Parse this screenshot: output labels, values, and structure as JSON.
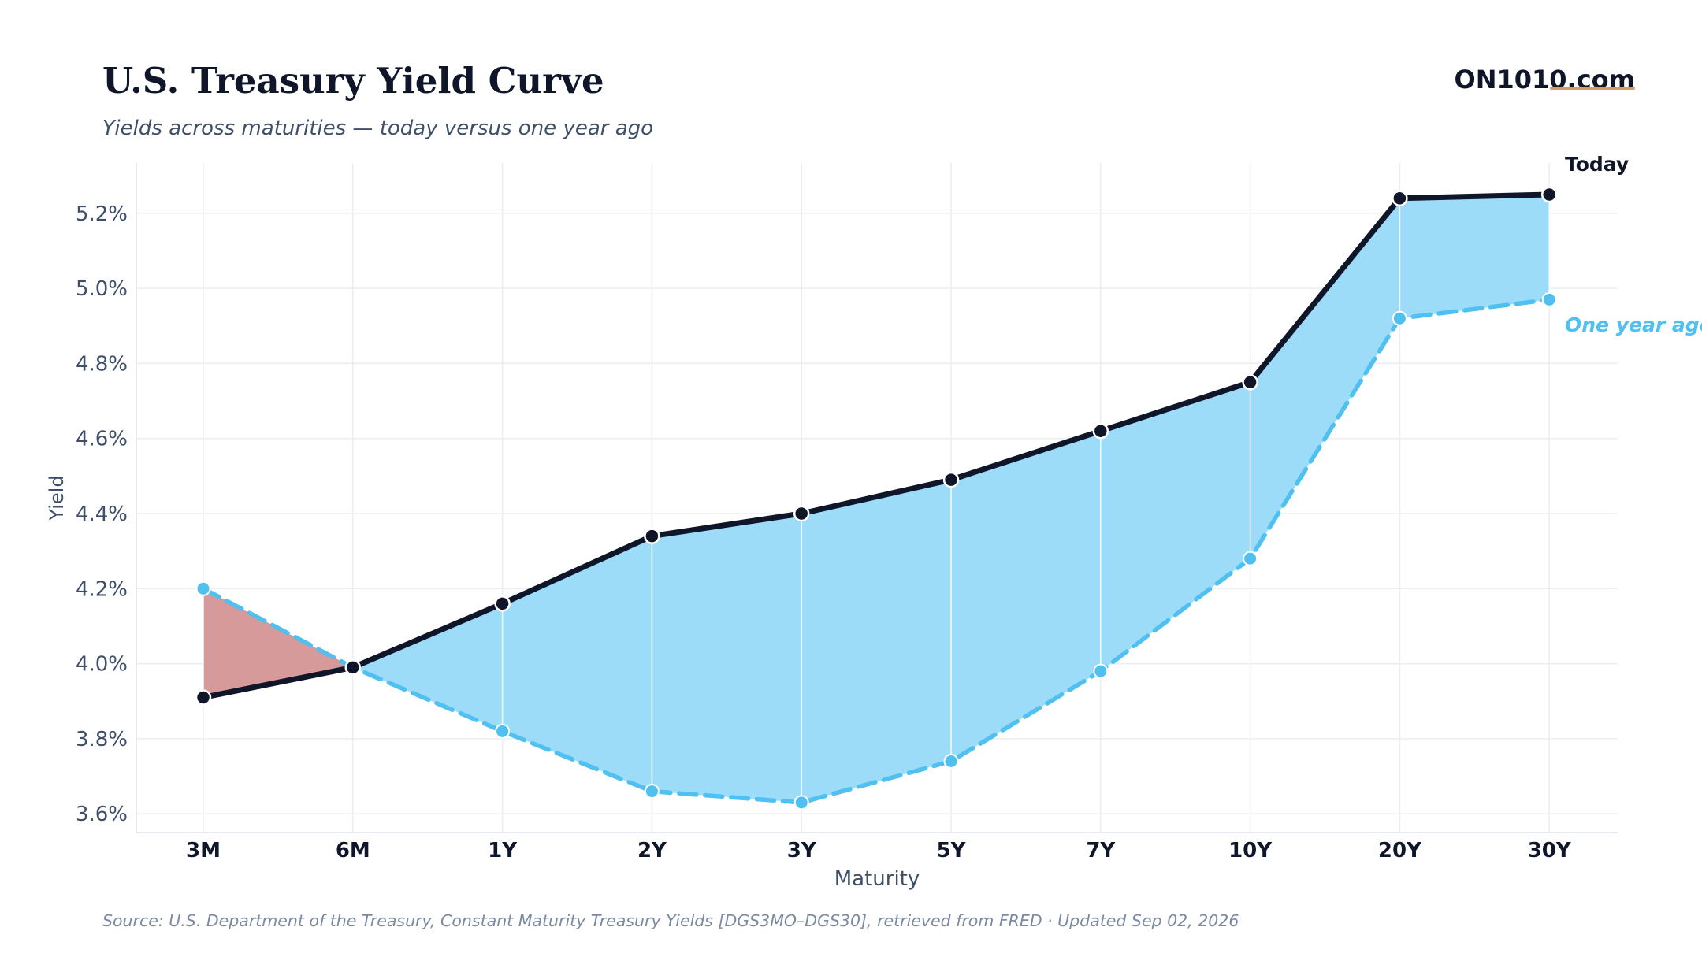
{
  "header": {
    "title": "U.S. Treasury Yield Curve",
    "subtitle": "Yields across maturities — today versus one year ago",
    "brand": "ON1010.com"
  },
  "footer": {
    "source": "Source: U.S. Department of the Treasury, Constant Maturity Treasury Yields [DGS3MO–DGS30], retrieved from FRED · Updated Sep 02, 2026"
  },
  "colors": {
    "today": "#0f1629",
    "year_ago": "#4fc0ef",
    "fill_above": "#9ddcf8",
    "fill_below": "#d59595",
    "brand_accent": "#c9a46a",
    "grid": "#ecedf1",
    "axis_text": "#3f4f68"
  },
  "chart_data": {
    "type": "line",
    "title": "",
    "xlabel": "Maturity",
    "ylabel": "Yield",
    "categories": [
      "3M",
      "6M",
      "1Y",
      "2Y",
      "3Y",
      "5Y",
      "7Y",
      "10Y",
      "20Y",
      "30Y"
    ],
    "series": [
      {
        "name": "Today",
        "values": [
          3.91,
          3.99,
          4.16,
          4.34,
          4.4,
          4.49,
          4.62,
          4.75,
          5.24,
          5.25
        ],
        "style": "solid"
      },
      {
        "name": "One year ago",
        "values": [
          4.2,
          3.99,
          3.82,
          3.66,
          3.63,
          3.74,
          3.98,
          4.28,
          4.92,
          4.97
        ],
        "style": "dashed"
      }
    ],
    "yticks": [
      "3.6%",
      "3.8%",
      "4.0%",
      "4.2%",
      "4.4%",
      "4.6%",
      "4.8%",
      "5.0%",
      "5.2%"
    ],
    "ytick_values": [
      3.6,
      3.8,
      4.0,
      4.2,
      4.4,
      4.6,
      4.8,
      5.0,
      5.2
    ],
    "ylim": [
      3.55,
      5.334
    ],
    "grid": true,
    "legend": "direct labels at right end of each series"
  }
}
